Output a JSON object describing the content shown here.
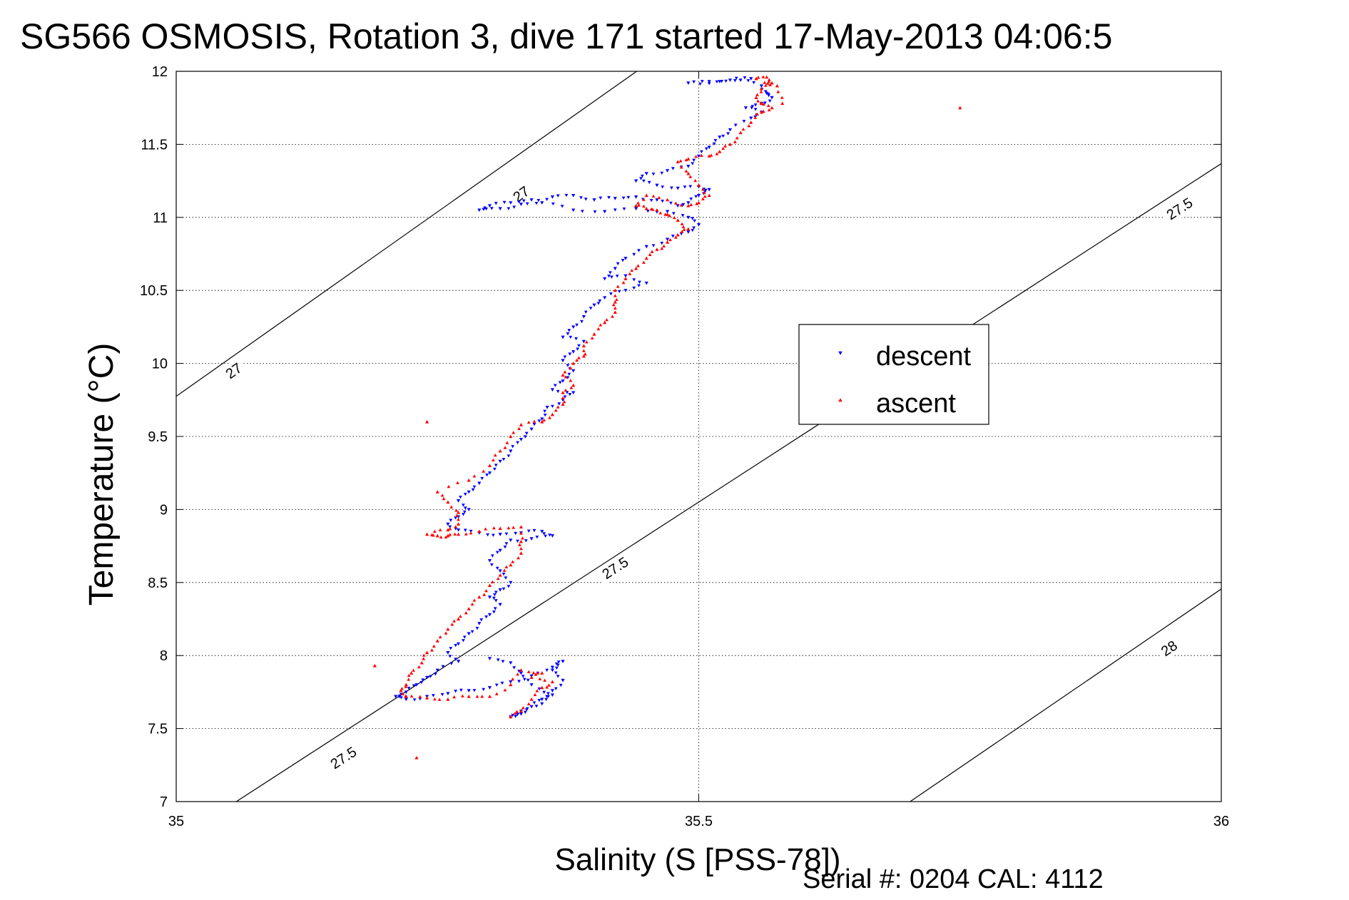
{
  "chart_data": {
    "type": "scatter",
    "title": "SG566 OSMOSIS, Rotation 3, dive 171 started 17-May-2013 04:06:5",
    "xlabel": "Salinity (S [PSS-78])",
    "ylabel": "Temperature (°C)",
    "xlim": [
      35,
      36
    ],
    "ylim": [
      7,
      12
    ],
    "xticks": [
      "35",
      "35.5",
      "36"
    ],
    "yticks": [
      "7",
      "7.5",
      "8",
      "8.5",
      "9",
      "9.5",
      "10",
      "10.5",
      "11",
      "11.5",
      "12"
    ],
    "grid": true,
    "legend_position": "upper-right",
    "footer": "Serial #: 0204  CAL: 4112",
    "density_contours": [
      {
        "label": "27",
        "line": [
          [
            34.9,
            9.27
          ],
          [
            35.5,
            12.3
          ]
        ],
        "label_positions": [
          [
            35.055,
            9.95
          ],
          [
            35.33,
            11.16
          ]
        ]
      },
      {
        "label": "27.5",
        "line": [
          [
            34.9,
            6.27
          ],
          [
            36.05,
            11.6
          ]
        ],
        "label_positions": [
          [
            35.16,
            7.3
          ],
          [
            35.42,
            8.6
          ],
          [
            35.96,
            11.06
          ]
        ]
      },
      {
        "label": "28",
        "line": [
          [
            35.6,
            6.5
          ],
          [
            36.05,
            8.7
          ]
        ],
        "label_positions": [
          [
            35.95,
            8.05
          ]
        ]
      }
    ],
    "series": [
      {
        "name": "descent",
        "color": "#0000ff",
        "marker": "triangle-down",
        "points": [
          [
            35.55,
            11.95
          ],
          [
            35.53,
            11.94
          ],
          [
            35.51,
            11.93
          ],
          [
            35.49,
            11.92
          ],
          [
            35.52,
            11.93
          ],
          [
            35.54,
            11.94
          ],
          [
            35.56,
            11.9
          ],
          [
            35.565,
            11.85
          ],
          [
            35.57,
            11.82
          ],
          [
            35.56,
            11.78
          ],
          [
            35.545,
            11.75
          ],
          [
            35.56,
            11.72
          ],
          [
            35.55,
            11.68
          ],
          [
            35.53,
            11.6
          ],
          [
            35.52,
            11.55
          ],
          [
            35.51,
            11.48
          ],
          [
            35.5,
            11.42
          ],
          [
            35.49,
            11.35
          ],
          [
            35.47,
            11.32
          ],
          [
            35.45,
            11.3
          ],
          [
            35.44,
            11.25
          ],
          [
            35.46,
            11.22
          ],
          [
            35.48,
            11.2
          ],
          [
            35.5,
            11.21
          ],
          [
            35.51,
            11.19
          ],
          [
            35.5,
            11.15
          ],
          [
            35.49,
            11.1
          ],
          [
            35.48,
            11.08
          ],
          [
            35.46,
            11.12
          ],
          [
            35.44,
            11.14
          ],
          [
            35.42,
            11.13
          ],
          [
            35.4,
            11.12
          ],
          [
            35.38,
            11.15
          ],
          [
            35.36,
            11.14
          ],
          [
            35.34,
            11.12
          ],
          [
            35.32,
            11.1
          ],
          [
            35.3,
            11.08
          ],
          [
            35.29,
            11.05
          ],
          [
            35.31,
            11.06
          ],
          [
            35.33,
            11.09
          ],
          [
            35.35,
            11.1
          ],
          [
            35.38,
            11.05
          ],
          [
            35.41,
            11.04
          ],
          [
            35.44,
            11.06
          ],
          [
            35.47,
            11.04
          ],
          [
            35.49,
            11.0
          ],
          [
            35.5,
            10.95
          ],
          [
            35.49,
            10.9
          ],
          [
            35.47,
            10.85
          ],
          [
            35.45,
            10.8
          ],
          [
            35.43,
            10.72
          ],
          [
            35.42,
            10.65
          ],
          [
            35.41,
            10.58
          ],
          [
            35.43,
            10.6
          ],
          [
            35.45,
            10.55
          ],
          [
            35.43,
            10.5
          ],
          [
            35.41,
            10.45
          ],
          [
            35.4,
            10.4
          ],
          [
            35.39,
            10.32
          ],
          [
            35.38,
            10.25
          ],
          [
            35.37,
            10.18
          ],
          [
            35.39,
            10.15
          ],
          [
            35.38,
            10.08
          ],
          [
            35.37,
            10.02
          ],
          [
            35.38,
            9.95
          ],
          [
            35.37,
            9.88
          ],
          [
            35.36,
            9.82
          ],
          [
            35.38,
            9.8
          ],
          [
            35.37,
            9.75
          ],
          [
            35.355,
            9.7
          ],
          [
            35.35,
            9.62
          ],
          [
            35.34,
            9.55
          ],
          [
            35.33,
            9.48
          ],
          [
            35.32,
            9.4
          ],
          [
            35.31,
            9.33
          ],
          [
            35.3,
            9.25
          ],
          [
            35.29,
            9.18
          ],
          [
            35.28,
            9.12
          ],
          [
            35.27,
            9.06
          ],
          [
            35.28,
            9.0
          ],
          [
            35.27,
            8.95
          ],
          [
            35.26,
            8.9
          ],
          [
            35.27,
            8.86
          ],
          [
            35.29,
            8.84
          ],
          [
            35.31,
            8.83
          ],
          [
            35.33,
            8.84
          ],
          [
            35.35,
            8.85
          ],
          [
            35.36,
            8.82
          ],
          [
            35.34,
            8.8
          ],
          [
            35.32,
            8.79
          ],
          [
            35.31,
            8.72
          ],
          [
            35.3,
            8.65
          ],
          [
            35.31,
            8.58
          ],
          [
            35.32,
            8.5
          ],
          [
            35.31,
            8.45
          ],
          [
            35.3,
            8.4
          ],
          [
            35.31,
            8.35
          ],
          [
            35.3,
            8.28
          ],
          [
            35.29,
            8.22
          ],
          [
            35.28,
            8.15
          ],
          [
            35.27,
            8.08
          ],
          [
            35.26,
            8.02
          ],
          [
            35.27,
            7.96
          ],
          [
            35.25,
            7.9
          ],
          [
            35.24,
            7.85
          ],
          [
            35.23,
            7.8
          ],
          [
            35.22,
            7.75
          ],
          [
            35.21,
            7.72
          ],
          [
            35.22,
            7.7
          ],
          [
            35.24,
            7.72
          ],
          [
            35.26,
            7.74
          ],
          [
            35.28,
            7.76
          ],
          [
            35.3,
            7.78
          ],
          [
            35.32,
            7.82
          ],
          [
            35.34,
            7.86
          ],
          [
            35.36,
            7.92
          ],
          [
            35.37,
            7.96
          ],
          [
            35.36,
            7.9
          ],
          [
            35.37,
            7.83
          ],
          [
            35.36,
            7.76
          ],
          [
            35.35,
            7.7
          ],
          [
            35.34,
            7.65
          ],
          [
            35.33,
            7.6
          ],
          [
            35.32,
            7.58
          ],
          [
            35.33,
            7.62
          ],
          [
            35.35,
            7.67
          ],
          [
            35.36,
            7.73
          ],
          [
            35.34,
            7.8
          ],
          [
            35.33,
            7.88
          ],
          [
            35.32,
            7.95
          ],
          [
            35.3,
            7.98
          ]
        ]
      },
      {
        "name": "ascent",
        "color": "#ff0000",
        "marker": "triangle-up",
        "points": [
          [
            35.32,
            7.58
          ],
          [
            35.33,
            7.62
          ],
          [
            35.34,
            7.7
          ],
          [
            35.35,
            7.78
          ],
          [
            35.36,
            7.82
          ],
          [
            35.34,
            7.85
          ],
          [
            35.35,
            7.88
          ],
          [
            35.33,
            7.9
          ],
          [
            35.32,
            7.8
          ],
          [
            35.3,
            7.72
          ],
          [
            35.28,
            7.72
          ],
          [
            35.26,
            7.7
          ],
          [
            35.24,
            7.71
          ],
          [
            35.22,
            7.72
          ],
          [
            35.215,
            7.76
          ],
          [
            35.22,
            7.8
          ],
          [
            35.225,
            7.88
          ],
          [
            35.235,
            7.95
          ],
          [
            35.24,
            8.02
          ],
          [
            35.25,
            8.1
          ],
          [
            35.26,
            8.18
          ],
          [
            35.27,
            8.25
          ],
          [
            35.28,
            8.32
          ],
          [
            35.29,
            8.4
          ],
          [
            35.3,
            8.48
          ],
          [
            35.31,
            8.55
          ],
          [
            35.32,
            8.62
          ],
          [
            35.33,
            8.7
          ],
          [
            35.33,
            8.78
          ],
          [
            35.33,
            8.88
          ],
          [
            35.31,
            8.87
          ],
          [
            35.29,
            8.85
          ],
          [
            35.27,
            8.83
          ],
          [
            35.26,
            8.82
          ],
          [
            35.25,
            8.82
          ],
          [
            35.24,
            8.83
          ],
          [
            35.26,
            8.86
          ],
          [
            35.27,
            8.9
          ],
          [
            35.27,
            8.98
          ],
          [
            35.26,
            9.05
          ],
          [
            35.25,
            9.12
          ],
          [
            35.28,
            9.2
          ],
          [
            35.3,
            9.3
          ],
          [
            35.31,
            9.4
          ],
          [
            35.32,
            9.5
          ],
          [
            35.33,
            9.58
          ],
          [
            35.35,
            9.6
          ],
          [
            35.36,
            9.65
          ],
          [
            35.37,
            9.72
          ],
          [
            35.37,
            9.8
          ],
          [
            35.38,
            9.85
          ],
          [
            35.37,
            9.92
          ],
          [
            35.38,
            10.0
          ],
          [
            35.39,
            10.05
          ],
          [
            35.39,
            10.12
          ],
          [
            35.4,
            10.2
          ],
          [
            35.41,
            10.28
          ],
          [
            35.42,
            10.35
          ],
          [
            35.42,
            10.42
          ],
          [
            35.42,
            10.5
          ],
          [
            35.43,
            10.58
          ],
          [
            35.44,
            10.65
          ],
          [
            35.45,
            10.72
          ],
          [
            35.46,
            10.78
          ],
          [
            35.47,
            10.83
          ],
          [
            35.48,
            10.88
          ],
          [
            35.49,
            10.92
          ],
          [
            35.48,
            10.98
          ],
          [
            35.47,
            11.02
          ],
          [
            35.46,
            11.05
          ],
          [
            35.45,
            11.06
          ],
          [
            35.44,
            11.08
          ],
          [
            35.45,
            11.15
          ],
          [
            35.47,
            11.12
          ],
          [
            35.49,
            11.08
          ],
          [
            35.5,
            11.1
          ],
          [
            35.51,
            11.15
          ],
          [
            35.5,
            11.22
          ],
          [
            35.49,
            11.3
          ],
          [
            35.48,
            11.38
          ],
          [
            35.49,
            11.4
          ],
          [
            35.51,
            11.42
          ],
          [
            35.52,
            11.45
          ],
          [
            35.53,
            11.5
          ],
          [
            35.54,
            11.58
          ],
          [
            35.55,
            11.65
          ],
          [
            35.56,
            11.72
          ],
          [
            35.57,
            11.75
          ],
          [
            35.56,
            11.78
          ],
          [
            35.555,
            11.82
          ],
          [
            35.56,
            11.88
          ],
          [
            35.57,
            11.92
          ],
          [
            35.565,
            11.96
          ],
          [
            35.555,
            11.95
          ],
          [
            35.575,
            11.9
          ],
          [
            35.58,
            11.78
          ],
          [
            35.24,
            9.6
          ],
          [
            35.19,
            7.93
          ],
          [
            35.23,
            7.3
          ],
          [
            35.75,
            11.75
          ]
        ]
      }
    ]
  }
}
